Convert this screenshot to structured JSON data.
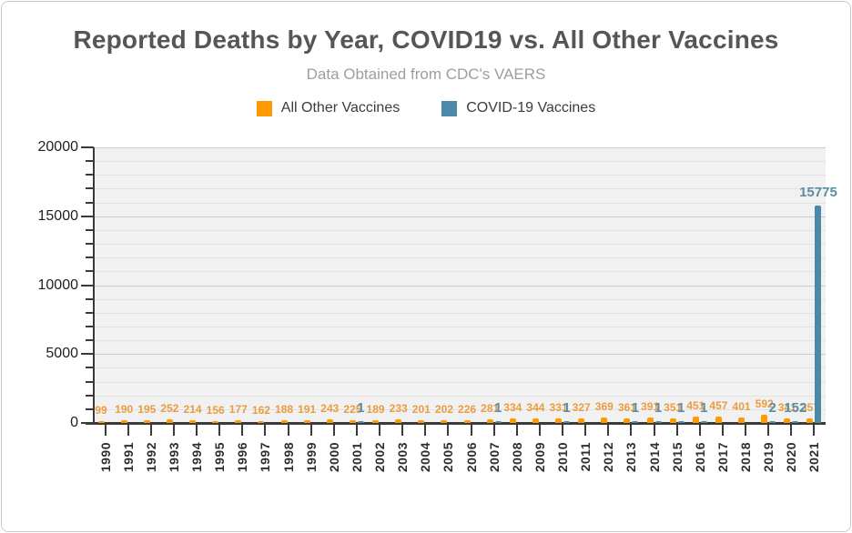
{
  "header": {
    "title": "Reported Deaths by Year, COVID19 vs. All Other Vaccines",
    "subtitle": "Data Obtained from CDC's VAERS"
  },
  "chart_data": {
    "type": "bar",
    "title": "Reported Deaths by Year, COVID19 vs. All Other Vaccines",
    "subtitle": "Data Obtained from CDC's VAERS",
    "categories": [
      "1990",
      "1991",
      "1992",
      "1993",
      "1994",
      "1995",
      "1996",
      "1997",
      "1998",
      "1999",
      "2000",
      "2001",
      "2002",
      "2003",
      "2004",
      "2005",
      "2006",
      "2007",
      "2008",
      "2009",
      "2010",
      "2011",
      "2012",
      "2013",
      "2014",
      "2015",
      "2016",
      "2017",
      "2018",
      "2019",
      "2020",
      "2021"
    ],
    "series": [
      {
        "name": "All Other Vaccines",
        "color": "#ff9900",
        "label_color": "#eb9c3f",
        "values": [
          99,
          190,
          195,
          252,
          214,
          156,
          177,
          162,
          188,
          191,
          243,
          225,
          189,
          233,
          201,
          202,
          226,
          281,
          334,
          344,
          331,
          327,
          369,
          361,
          391,
          351,
          451,
          457,
          401,
          592,
          341,
          357
        ]
      },
      {
        "name": "COVID-19 Vaccines",
        "color": "#4a89a8",
        "label_color": "#5b8ca6",
        "values": [
          null,
          null,
          null,
          null,
          null,
          null,
          null,
          null,
          null,
          null,
          null,
          1,
          null,
          null,
          null,
          null,
          null,
          1,
          null,
          null,
          1,
          null,
          null,
          1,
          1,
          1,
          1,
          null,
          null,
          2,
          152,
          15775
        ]
      }
    ],
    "xlabel": "",
    "ylabel": "",
    "ylim": [
      0,
      20000
    ],
    "yticks": [
      0,
      5000,
      10000,
      15000,
      20000
    ],
    "minor_grid_step": 1000,
    "grid": true,
    "legend_position": "top",
    "annotations_visible": true,
    "max_annotation": "15775"
  }
}
